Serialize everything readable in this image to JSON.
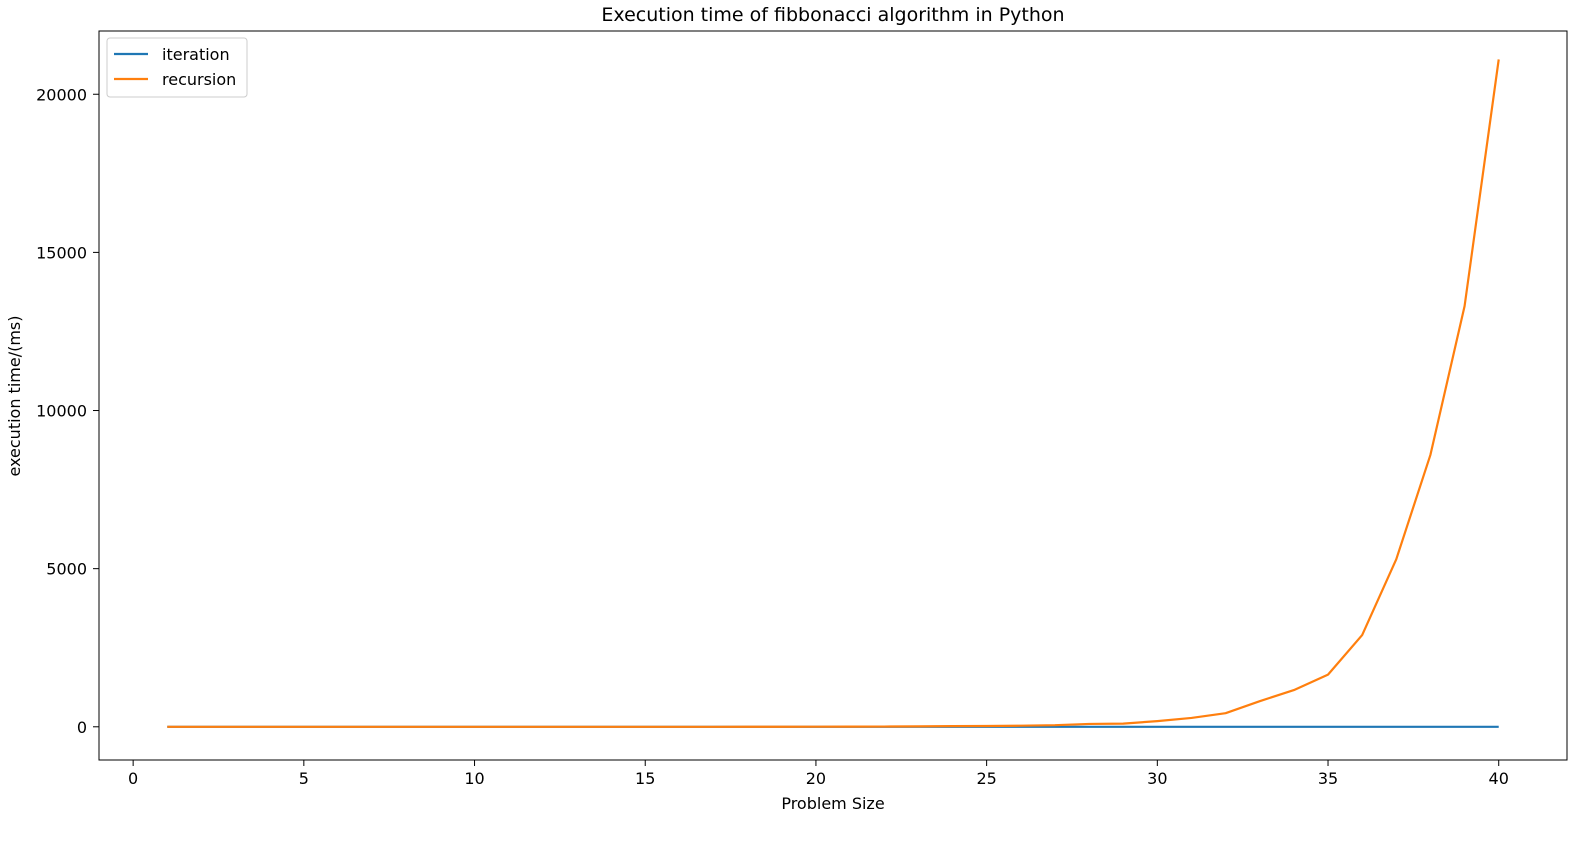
{
  "chart_data": {
    "type": "line",
    "title": "Execution time of fibbonacci algorithm in Python",
    "xlabel": "Problem Size",
    "ylabel": "execution time/(ms)",
    "xlim": [
      -1.0,
      42.0
    ],
    "ylim": [
      -1050,
      22000
    ],
    "xticks": [
      0,
      5,
      10,
      15,
      20,
      25,
      30,
      35,
      40
    ],
    "yticks": [
      0,
      5000,
      10000,
      15000,
      20000
    ],
    "grid": false,
    "legend_position": "top-left",
    "x": [
      1,
      2,
      3,
      4,
      5,
      6,
      7,
      8,
      9,
      10,
      11,
      12,
      13,
      14,
      15,
      16,
      17,
      18,
      19,
      20,
      21,
      22,
      23,
      24,
      25,
      26,
      27,
      28,
      29,
      30,
      31,
      32,
      33,
      34,
      35,
      36,
      37,
      38,
      39,
      40
    ],
    "series": [
      {
        "name": "iteration",
        "color": "#1f77b4",
        "values": [
          0,
          0,
          0,
          0,
          0,
          0,
          0,
          0,
          0,
          0,
          0,
          0,
          0,
          0,
          0,
          0,
          0,
          0,
          0,
          0,
          0,
          0,
          0,
          0,
          0,
          0,
          0,
          0,
          0,
          0,
          0,
          0,
          0,
          0,
          0,
          0,
          0,
          0,
          0,
          0
        ]
      },
      {
        "name": "recursion",
        "color": "#ff7f0e",
        "values": [
          0,
          0,
          0,
          0,
          0,
          0,
          0,
          0,
          0,
          0,
          0,
          0,
          0,
          0,
          0,
          0,
          0,
          1,
          2,
          3,
          5,
          8,
          13,
          20,
          25,
          35,
          50,
          90,
          100,
          180,
          280,
          430,
          810,
          1160,
          1650,
          2900,
          5300,
          8600,
          13300,
          21100
        ]
      }
    ]
  }
}
